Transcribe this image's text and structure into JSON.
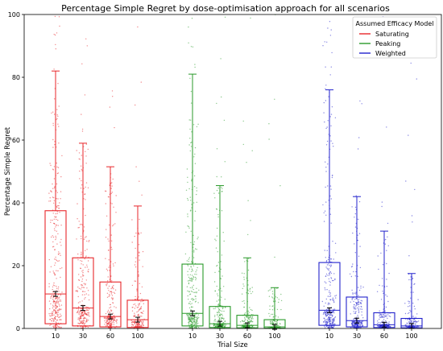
{
  "chart_data": {
    "type": "boxplot",
    "title": "Percentage Simple Regret by dose-optimisation approach for all scenarios",
    "xlabel": "Trial Size",
    "ylabel": "Percentage Simple Regret",
    "ylim": [
      0,
      100
    ],
    "yticks": [
      "0",
      "20",
      "40",
      "60",
      "80",
      "100"
    ],
    "grid": false,
    "legend": {
      "title": "Assumed Efficacy Model",
      "placement": "top-right",
      "entries": [
        "Saturating",
        "Peaking",
        "Weighted"
      ]
    },
    "trial_sizes": [
      "10",
      "30",
      "60",
      "100"
    ],
    "series": [
      {
        "name": "Saturating",
        "color": "#e8262a",
        "boxes": [
          {
            "trial_size": "10",
            "whisker_low": 0,
            "q1": 1.5,
            "median": 11,
            "q3": 37.5,
            "whisker_high": 82,
            "mean": 11
          },
          {
            "trial_size": "30",
            "whisker_low": 0,
            "q1": 0.8,
            "median": 6.5,
            "q3": 22.5,
            "whisker_high": 59,
            "mean": 6.5
          },
          {
            "trial_size": "60",
            "whisker_low": 0,
            "q1": 0.5,
            "median": 3.8,
            "q3": 14.8,
            "whisker_high": 51.5,
            "mean": 3.8
          },
          {
            "trial_size": "100",
            "whisker_low": 0,
            "q1": 0.3,
            "median": 2.8,
            "q3": 9,
            "whisker_high": 39,
            "mean": 2.8
          }
        ]
      },
      {
        "name": "Peaking",
        "color": "#2a9a2a",
        "boxes": [
          {
            "trial_size": "10",
            "whisker_low": 0,
            "q1": 0.8,
            "median": 4.8,
            "q3": 20.5,
            "whisker_high": 81,
            "mean": 4.8
          },
          {
            "trial_size": "30",
            "whisker_low": 0,
            "q1": 0.3,
            "median": 1.5,
            "q3": 7,
            "whisker_high": 45.5,
            "mean": 1.5
          },
          {
            "trial_size": "60",
            "whisker_low": 0,
            "q1": 0.2,
            "median": 1,
            "q3": 4.2,
            "whisker_high": 22.5,
            "mean": 1
          },
          {
            "trial_size": "100",
            "whisker_low": 0,
            "q1": 0.1,
            "median": 0.5,
            "q3": 2.8,
            "whisker_high": 13,
            "mean": 0.5
          }
        ]
      },
      {
        "name": "Weighted",
        "color": "#2222cc",
        "boxes": [
          {
            "trial_size": "10",
            "whisker_low": 0,
            "q1": 1,
            "median": 5.8,
            "q3": 21,
            "whisker_high": 76,
            "mean": 5.8
          },
          {
            "trial_size": "30",
            "whisker_low": 0,
            "q1": 0.5,
            "median": 2.5,
            "q3": 10,
            "whisker_high": 42,
            "mean": 2.5
          },
          {
            "trial_size": "60",
            "whisker_low": 0,
            "q1": 0.3,
            "median": 1.2,
            "q3": 5,
            "whisker_high": 31,
            "mean": 1.2
          },
          {
            "trial_size": "100",
            "whisker_low": 0,
            "q1": 0.2,
            "median": 0.8,
            "q3": 3.2,
            "whisker_high": 17.5,
            "mean": 0.8
          }
        ]
      }
    ]
  }
}
